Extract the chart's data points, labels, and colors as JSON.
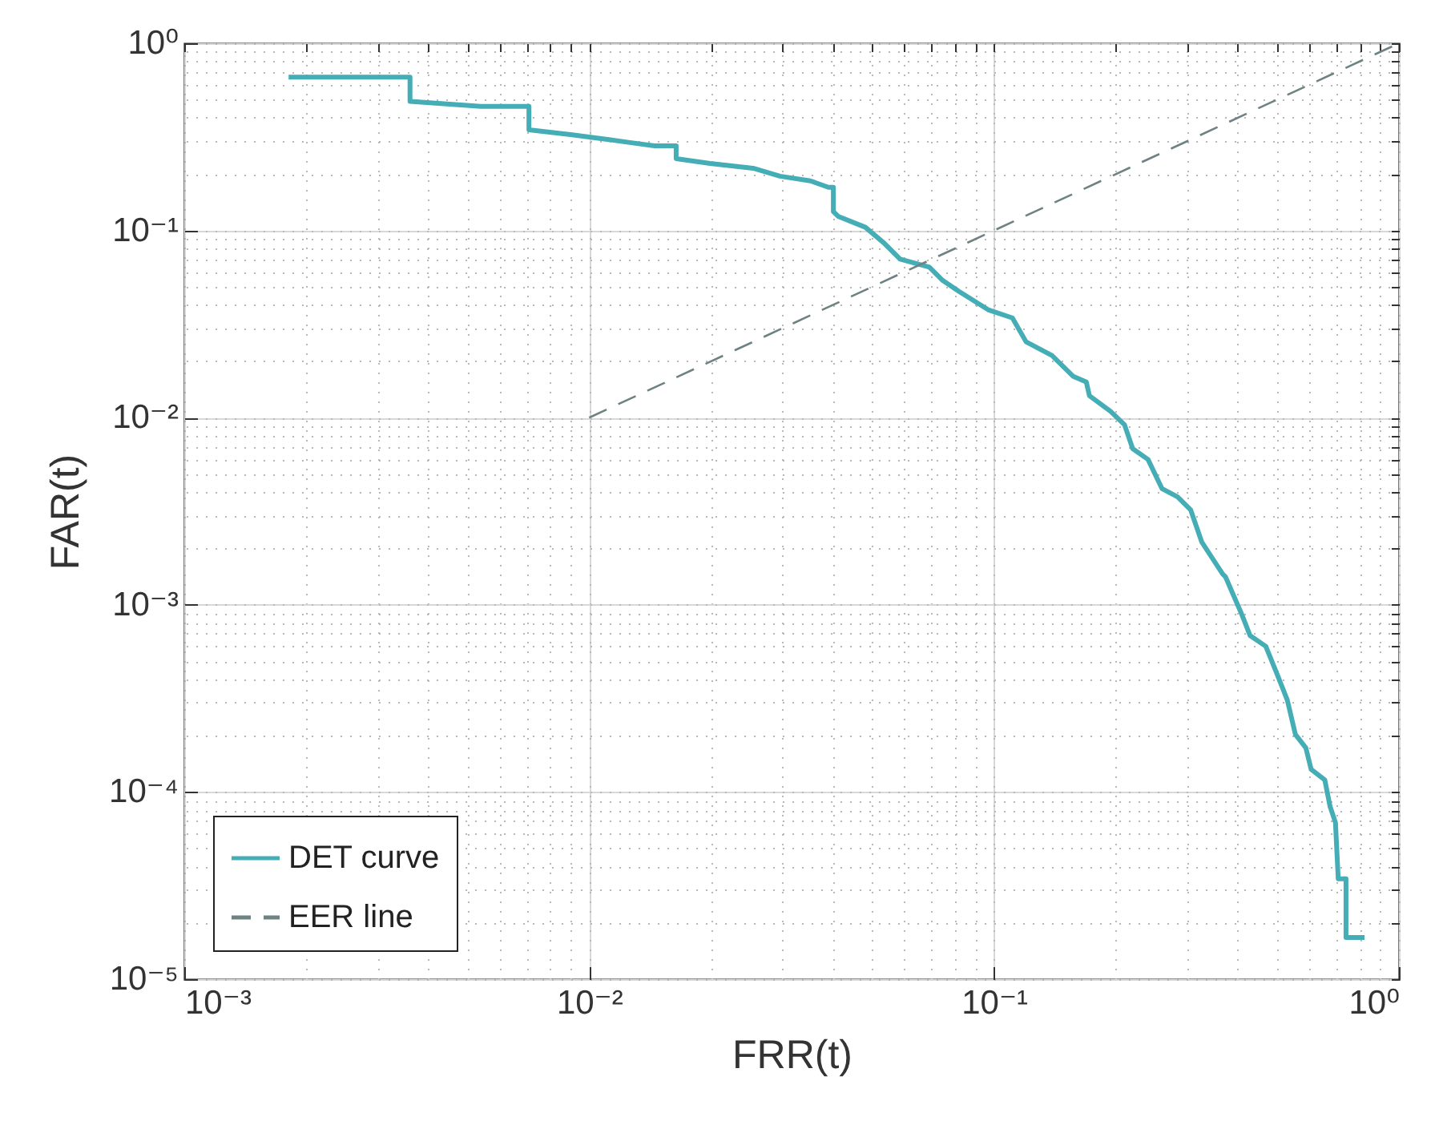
{
  "chart_data": {
    "type": "line",
    "xlabel": "FRR(t)",
    "ylabel": "FAR(t)",
    "log": "xy",
    "grid": true,
    "legend": "bottom left",
    "xlim": [
      0.001,
      1
    ],
    "ylim": [
      1e-05,
      1
    ],
    "xticks": [
      {
        "value": 0.001,
        "label": "10⁻³"
      },
      {
        "value": 0.01,
        "label": "10⁻²"
      },
      {
        "value": 0.1,
        "label": "10⁻¹"
      },
      {
        "value": 1,
        "label": "10⁰"
      }
    ],
    "yticks": [
      {
        "value": 1e-05,
        "label": "10⁻⁵"
      },
      {
        "value": 0.0001,
        "label": "10⁻⁴"
      },
      {
        "value": 0.001,
        "label": "10⁻³"
      },
      {
        "value": 0.01,
        "label": "10⁻²"
      },
      {
        "value": 0.1,
        "label": "10⁻¹"
      },
      {
        "value": 1,
        "label": "10⁰"
      }
    ],
    "series": [
      {
        "name": "DET curve",
        "color": "#45adb6",
        "line_style": "solid",
        "x": [
          0.00181,
          0.00361,
          0.00361,
          0.0054,
          0.0071,
          0.0071,
          0.009,
          0.0109,
          0.0126,
          0.0145,
          0.0164,
          0.0164,
          0.0199,
          0.0254,
          0.0296,
          0.0352,
          0.039,
          0.0401,
          0.0401,
          0.0412,
          0.0481,
          0.0535,
          0.0586,
          0.0692,
          0.0747,
          0.0818,
          0.0967,
          0.111,
          0.12,
          0.139,
          0.157,
          0.169,
          0.172,
          0.194,
          0.21,
          0.22,
          0.24,
          0.26,
          0.284,
          0.306,
          0.326,
          0.367,
          0.373,
          0.409,
          0.429,
          0.469,
          0.499,
          0.53,
          0.555,
          0.589,
          0.607,
          0.656,
          0.676,
          0.697,
          0.708,
          0.708,
          0.74,
          0.74,
          0.822
        ],
        "values": [
          0.66,
          0.66,
          0.489,
          0.46,
          0.46,
          0.345,
          0.325,
          0.308,
          0.295,
          0.283,
          0.283,
          0.242,
          0.228,
          0.215,
          0.195,
          0.184,
          0.17,
          0.17,
          0.126,
          0.119,
          0.104,
          0.0856,
          0.0703,
          0.0637,
          0.054,
          0.0473,
          0.0377,
          0.0341,
          0.0254,
          0.0215,
          0.0166,
          0.0155,
          0.0131,
          0.0108,
          0.00916,
          0.00682,
          0.00598,
          0.00417,
          0.00377,
          0.00321,
          0.00216,
          0.00146,
          0.00141,
          0.00089,
          0.000684,
          0.0006,
          0.000431,
          0.00031,
          0.000203,
          0.000172,
          0.000132,
          0.000116,
          8.36e-05,
          6.86e-05,
          3.44e-05,
          3.44e-05,
          3.44e-05,
          1.67e-05,
          1.67e-05
        ]
      },
      {
        "name": "EER line",
        "color": "#6f8283",
        "line_style": "dashed",
        "x": [
          0.01,
          1
        ],
        "values": [
          0.01,
          1
        ]
      }
    ]
  }
}
